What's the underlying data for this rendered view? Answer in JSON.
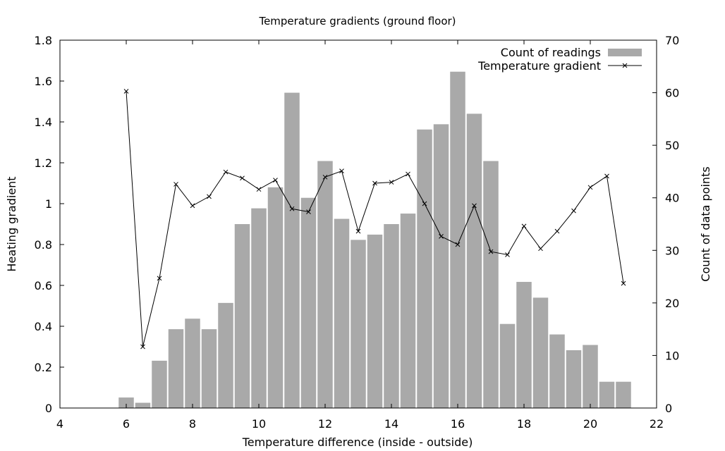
{
  "chart_data": {
    "type": "bar",
    "title": "Temperature gradients (ground floor)",
    "xlabel": "Temperature difference (inside - outside)",
    "ylabel": "Heating gradient",
    "y2label": "Count of data points",
    "xlim": [
      4,
      22
    ],
    "ylim": [
      0,
      1.8
    ],
    "y2lim": [
      0,
      70
    ],
    "xticks": [
      4,
      6,
      8,
      10,
      12,
      14,
      16,
      18,
      20,
      22
    ],
    "yticks": [
      "0",
      "0.2",
      "0.4",
      "0.6",
      "0.8",
      "1",
      "1.2",
      "1.4",
      "1.6",
      "1.8"
    ],
    "y2ticks": [
      0,
      10,
      20,
      30,
      40,
      50,
      60,
      70
    ],
    "grid": false,
    "legend_position": "top-right",
    "series": [
      {
        "name": "Count of readings",
        "type": "bar",
        "axis": "y2",
        "color": "#a9a9a9",
        "bin_width": 0.5,
        "x": [
          6,
          6.5,
          7,
          7.5,
          8,
          8.5,
          9,
          9.5,
          10,
          10.5,
          11,
          11.5,
          12,
          12.5,
          13,
          13.5,
          14,
          14.5,
          15,
          15.5,
          16,
          16.5,
          17,
          17.5,
          18,
          18.5,
          19,
          19.5,
          20,
          20.5,
          21
        ],
        "values": [
          2,
          1,
          9,
          15,
          17,
          15,
          20,
          35,
          38,
          42,
          60,
          40,
          47,
          36,
          32,
          33,
          35,
          37,
          53,
          54,
          64,
          56,
          47,
          16,
          24,
          21,
          14,
          11,
          12,
          5,
          5
        ]
      },
      {
        "name": "Temperature gradient",
        "type": "line",
        "axis": "y",
        "color": "#000000",
        "marker": "x",
        "x": [
          6,
          6.5,
          7,
          7.5,
          8,
          8.5,
          9,
          9.5,
          10,
          10.5,
          11,
          11.5,
          12,
          12.5,
          13,
          13.5,
          14,
          14.5,
          15,
          15.5,
          16,
          16.5,
          17,
          17.5,
          18,
          18.5,
          19,
          19.5,
          20,
          20.5,
          21
        ],
        "values": [
          1.55,
          0.3,
          0.635,
          1.095,
          0.99,
          1.035,
          1.155,
          1.125,
          1.07,
          1.115,
          0.975,
          0.96,
          1.13,
          1.16,
          0.865,
          1.1,
          1.105,
          1.145,
          1.0,
          0.84,
          0.8,
          0.99,
          0.765,
          0.75,
          0.89,
          0.78,
          0.865,
          0.965,
          1.08,
          1.135,
          0.61
        ]
      }
    ]
  }
}
